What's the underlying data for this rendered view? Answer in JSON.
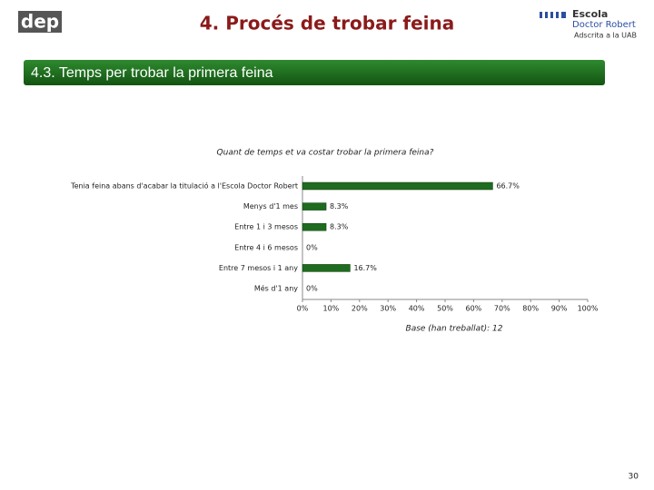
{
  "header": {
    "title": "4. Procés de trobar feina",
    "section": "4.3. Temps per trobar la primera feina",
    "logo_left": "dep",
    "logo_right": [
      "Escola",
      "Doctor Robert",
      "Adscrita a la UAB"
    ]
  },
  "page_number": "30",
  "chart_data": {
    "type": "hbar",
    "title": "Quant de temps et va costar trobar la primera feina?",
    "categories": [
      "Tenia feina abans d'acabar la titulació a l'Escola Doctor Robert",
      "Menys d'1 mes",
      "Entre 1 i 3 mesos",
      "Entre 4 i 6 mesos",
      "Entre 7 mesos i 1 any",
      "Més d'1 any"
    ],
    "values": [
      66.7,
      8.3,
      8.3,
      0,
      16.7,
      0
    ],
    "value_labels": [
      "66.7%",
      "8.3%",
      "8.3%",
      "0%",
      "16.7%",
      "0%"
    ],
    "color": "#1f6b1f",
    "xlim": [
      0,
      100
    ],
    "xticks": [
      {
        "value": 0,
        "label": "0%"
      },
      {
        "value": 10,
        "label": "10%"
      },
      {
        "value": 20,
        "label": "20%"
      },
      {
        "value": 30,
        "label": "30%"
      },
      {
        "value": 40,
        "label": "40%"
      },
      {
        "value": 50,
        "label": "50%"
      },
      {
        "value": 60,
        "label": "60%"
      },
      {
        "value": 70,
        "label": "70%"
      },
      {
        "value": 80,
        "label": "80%"
      },
      {
        "value": 90,
        "label": "90%"
      },
      {
        "value": 100,
        "label": "100%"
      }
    ],
    "note": "Base (han treballat): 12"
  }
}
